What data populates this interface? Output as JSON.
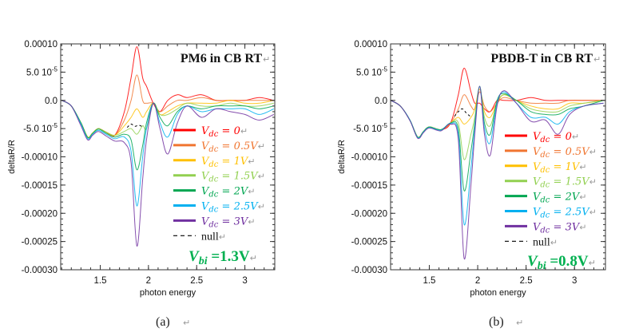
{
  "chart_data": [
    {
      "type": "line",
      "title": "PM6 in CB RT",
      "xlabel": "photon energy",
      "ylabel": "deltaR/R",
      "xlim": [
        1.09,
        3.31
      ],
      "ylim": [
        -0.0003,
        0.0001
      ],
      "xticks": [
        1.5,
        2,
        2.5,
        3
      ],
      "xtick_labels": [
        "1.5",
        "2",
        "2.5",
        "3"
      ],
      "yticks": [
        0.0001,
        5e-05,
        0,
        -5e-05,
        -0.0001,
        -0.00015,
        -0.0002,
        -0.00025,
        -0.0003
      ],
      "ytick_labels": [
        "0.00010",
        "5.0 10^-5",
        "0.0",
        "-5.0 10^-5",
        "-0.00010",
        "-0.00015",
        "-0.00020",
        "-0.00025",
        "-0.00030"
      ],
      "grid": false,
      "legend_placement": "right",
      "caption": "(a)",
      "annotation": {
        "label": "V",
        "sub": "bi",
        "value": " =1.3V"
      },
      "x": [
        1.1,
        1.2,
        1.3,
        1.37,
        1.42,
        1.48,
        1.56,
        1.65,
        1.75,
        1.82,
        1.88,
        1.94,
        1.98,
        2.05,
        2.12,
        2.2,
        2.3,
        2.4,
        2.55,
        2.7,
        2.85,
        3.0,
        3.15,
        3.3
      ],
      "series": [
        {
          "name": "Vdc = 0",
          "label_v": "V",
          "label_sub": "dc",
          "label_rest": " = 0",
          "color": "#ff0000",
          "values": [
            0,
            -1e-05,
            -4e-05,
            -6.5e-05,
            -5.8e-05,
            -5e-05,
            -5.6e-05,
            -6.2e-05,
            -2e-05,
            4e-05,
            9.5e-05,
            4e-05,
            2.5e-05,
            -5e-06,
            -2e-05,
            0,
            1e-05,
            5e-06,
            1e-05,
            0,
            0,
            0,
            5e-06,
            0
          ]
        },
        {
          "name": "Vdc = 0.5V",
          "label_v": "V",
          "label_sub": "dc",
          "label_rest": " = 0.5V",
          "color": "#f07530",
          "values": [
            0,
            -1e-05,
            -4e-05,
            -6.5e-05,
            -5.8e-05,
            -5e-05,
            -5.6e-05,
            -6.2e-05,
            -3.5e-05,
            0,
            4.5e-05,
            0,
            -5e-06,
            -5e-06,
            -2e-05,
            -1e-05,
            0,
            0,
            5e-06,
            0,
            0,
            0,
            0,
            0
          ]
        },
        {
          "name": "Vdc = 1V",
          "label_v": "V",
          "label_sub": "dc",
          "label_rest": " = 1V",
          "color": "#ffc000",
          "values": [
            0,
            -1e-05,
            -4e-05,
            -6.5e-05,
            -5.8e-05,
            -5e-05,
            -5.6e-05,
            -6.2e-05,
            -4.5e-05,
            -3e-05,
            -1.5e-05,
            -3e-05,
            -2e-05,
            -5e-06,
            -2.5e-05,
            -2e-05,
            -1e-05,
            -5e-06,
            -5e-06,
            -5e-06,
            0,
            -5e-06,
            -5e-06,
            0
          ]
        },
        {
          "name": "Vdc = 1.5V",
          "label_v": "V",
          "label_sub": "dc",
          "label_rest": " = 1.5V",
          "color": "#92d050",
          "values": [
            0,
            -1e-05,
            -4e-05,
            -6.5e-05,
            -5.8e-05,
            -5e-05,
            -5.6e-05,
            -6.2e-05,
            -5.5e-05,
            -5e-05,
            -6e-05,
            -4.5e-05,
            -5e-05,
            -5e-06,
            -2.5e-05,
            -2.5e-05,
            -1.5e-05,
            -5e-06,
            -1e-05,
            -1e-05,
            -5e-06,
            -1e-05,
            -1e-05,
            -5e-06
          ]
        },
        {
          "name": "Vdc = 2V",
          "label_v": "V",
          "label_sub": "dc",
          "label_rest": " = 2V",
          "color": "#00a651",
          "values": [
            0,
            -1e-05,
            -4e-05,
            -6.6e-05,
            -5.9e-05,
            -5.1e-05,
            -5.8e-05,
            -6.5e-05,
            -6e-05,
            -7e-05,
            -0.000123,
            -8e-05,
            -4e-05,
            -5e-06,
            -3e-05,
            -4.5e-05,
            -2e-05,
            -1e-05,
            -1.5e-05,
            -1e-05,
            -1e-05,
            -1e-05,
            -1.5e-05,
            -1e-05
          ]
        },
        {
          "name": "Vdc = 2.5V",
          "label_v": "V",
          "label_sub": "dc",
          "label_rest": " = 2.5V",
          "color": "#00b0f0",
          "values": [
            0,
            -1e-05,
            -4.2e-05,
            -6.8e-05,
            -6e-05,
            -5.3e-05,
            -6e-05,
            -6.8e-05,
            -6.5e-05,
            -9e-05,
            -0.000187,
            -0.0001,
            -5e-05,
            -5e-06,
            -4e-05,
            -6.5e-05,
            -2.5e-05,
            -1e-05,
            -2e-05,
            -1.5e-05,
            -1.5e-05,
            -1.5e-05,
            -2.5e-05,
            -1.5e-05
          ]
        },
        {
          "name": "Vdc = 3V",
          "label_v": "V",
          "label_sub": "dc",
          "label_rest": " = 3V",
          "color": "#7030a0",
          "values": [
            0,
            -1e-05,
            -4.5e-05,
            -7e-05,
            -6.2e-05,
            -5.5e-05,
            -6.3e-05,
            -7.2e-05,
            -7.5e-05,
            -0.00011,
            -0.000258,
            -0.00014,
            -7e-05,
            -5e-06,
            -5e-05,
            -9.5e-05,
            -4e-05,
            -1e-05,
            -3e-05,
            -1.5e-05,
            -2e-05,
            -2.5e-05,
            -3.5e-05,
            -2.5e-05
          ]
        }
      ],
      "null_series": {
        "name": "null",
        "x": [
          1.78,
          1.82,
          1.86,
          1.9,
          1.94
        ],
        "values": [
          -4.8e-05,
          -4.2e-05,
          -4.6e-05,
          -4.4e-05,
          -4.7e-05
        ]
      }
    },
    {
      "type": "line",
      "title": "PBDB-T in CB RT",
      "xlabel": "photon energy",
      "ylabel": "deltaR/R",
      "xlim": [
        1.1,
        3.32
      ],
      "ylim": [
        -0.0003,
        0.0001
      ],
      "xticks": [
        1.5,
        2,
        2.5,
        3
      ],
      "xtick_labels": [
        "1.5",
        "2",
        "2.5",
        "3"
      ],
      "yticks": [
        0.0001,
        5e-05,
        0,
        -5e-05,
        -0.0001,
        -0.00015,
        -0.0002,
        -0.00025,
        -0.0003
      ],
      "ytick_labels": [
        "0.00010",
        "5.0 10^-5",
        "0.0",
        "-5.0 10^-5",
        "-0.00010",
        "-0.00015",
        "-0.00020",
        "-0.00025",
        "-0.00030"
      ],
      "grid": false,
      "legend_placement": "right",
      "caption": "(b)",
      "annotation": {
        "label": "V",
        "sub": "bi",
        "value": " =0.8V"
      },
      "x": [
        1.1,
        1.2,
        1.3,
        1.38,
        1.44,
        1.5,
        1.62,
        1.72,
        1.8,
        1.86,
        1.93,
        1.97,
        2.02,
        2.07,
        2.13,
        2.2,
        2.27,
        2.4,
        2.55,
        2.7,
        2.83,
        2.95,
        3.1,
        3.3
      ],
      "series": [
        {
          "name": "Vdc = 0",
          "label_v": "V",
          "label_sub": "dc",
          "label_rest": " = 0",
          "color": "#ff0000",
          "values": [
            0,
            -1e-05,
            -3.5e-05,
            -6.5e-05,
            -5.5e-05,
            -4.7e-05,
            -5.2e-05,
            -4e-05,
            1e-05,
            5.7e-05,
            1.5e-05,
            -5e-06,
            -5e-06,
            -1.5e-05,
            -2e-05,
            0,
            0,
            0,
            5e-06,
            0,
            0,
            0,
            0,
            0
          ]
        },
        {
          "name": "Vdc = 0.5V",
          "label_v": "V",
          "label_sub": "dc",
          "label_rest": " = 0.5V",
          "color": "#f07530",
          "values": [
            0,
            -1e-05,
            -3.5e-05,
            -6.5e-05,
            -5.5e-05,
            -4.7e-05,
            -5.2e-05,
            -4e-05,
            -1.5e-05,
            1e-05,
            -1e-05,
            -1.5e-05,
            1.5e-05,
            -1e-05,
            -2e-05,
            -5e-06,
            5e-06,
            0,
            -5e-06,
            -5e-06,
            -5e-06,
            0,
            0,
            0
          ]
        },
        {
          "name": "Vdc = 1V",
          "label_v": "V",
          "label_sub": "dc",
          "label_rest": " = 1V",
          "color": "#ffc000",
          "values": [
            0,
            -1e-05,
            -3.5e-05,
            -6.5e-05,
            -5.5e-05,
            -4.7e-05,
            -5.2e-05,
            -4e-05,
            -3e-05,
            -4.2e-05,
            -3e-05,
            -1.5e-05,
            2e-05,
            -2e-05,
            -3e-05,
            -5e-06,
            1e-05,
            0,
            -1e-05,
            -1.5e-05,
            -1.5e-05,
            -5e-06,
            -5e-06,
            0
          ]
        },
        {
          "name": "Vdc = 1.5V",
          "label_v": "V",
          "label_sub": "dc",
          "label_rest": " = 1.5V",
          "color": "#92d050",
          "values": [
            0,
            -1e-05,
            -3.5e-05,
            -6.5e-05,
            -5.5e-05,
            -4.7e-05,
            -5.2e-05,
            -4e-05,
            -4e-05,
            -0.000105,
            -6e-05,
            -3e-05,
            2.5e-05,
            -3e-05,
            -4.5e-05,
            -5e-06,
            1e-05,
            0,
            -1.5e-05,
            -2e-05,
            -2e-05,
            -1e-05,
            -5e-06,
            0
          ]
        },
        {
          "name": "Vdc = 2V",
          "label_v": "V",
          "label_sub": "dc",
          "label_rest": " = 2V",
          "color": "#00a651",
          "values": [
            0,
            -1e-05,
            -3.5e-05,
            -6.5e-05,
            -5.5e-05,
            -4.7e-05,
            -5.2e-05,
            -4e-05,
            -5e-05,
            -0.00016,
            -9e-05,
            -4e-05,
            2.5e-05,
            -4e-05,
            -6e-05,
            0,
            1.2e-05,
            0,
            -2e-05,
            -2.5e-05,
            -2.5e-05,
            -1.5e-05,
            -1e-05,
            0
          ]
        },
        {
          "name": "Vdc = 2.5V",
          "label_v": "V",
          "label_sub": "dc",
          "label_rest": " = 2.5V",
          "color": "#00b0f0",
          "values": [
            0,
            -1e-05,
            -3.5e-05,
            -6.6e-05,
            -5.6e-05,
            -4.8e-05,
            -5.3e-05,
            -4.1e-05,
            -6e-05,
            -0.00022,
            -0.00012,
            -5e-05,
            2.5e-05,
            -5e-05,
            -7.5e-05,
            -5e-06,
            1.5e-05,
            -5e-06,
            -3e-05,
            -3e-05,
            -4.2e-05,
            -2e-05,
            -1e-05,
            -5e-06
          ]
        },
        {
          "name": "Vdc = 3V",
          "label_v": "V",
          "label_sub": "dc",
          "label_rest": " = 3V",
          "color": "#7030a0",
          "values": [
            0,
            -1e-05,
            -3.6e-05,
            -6.7e-05,
            -5.7e-05,
            -4.9e-05,
            -5.4e-05,
            -4.2e-05,
            -7e-05,
            -0.00028,
            -0.00015,
            -6e-05,
            2.5e-05,
            -6e-05,
            -9.7e-05,
            -1e-05,
            1.7e-05,
            -5e-06,
            -3.7e-05,
            -3.5e-05,
            -6e-05,
            -2.5e-05,
            -1e-05,
            -5e-06
          ]
        }
      ],
      "null_series": {
        "name": "null",
        "x": [
          1.76,
          1.8,
          1.84,
          1.88,
          1.92
        ],
        "values": [
          -2.8e-05,
          -2e-05,
          -1.5e-05,
          -2.2e-05,
          -2.8e-05
        ]
      }
    }
  ]
}
